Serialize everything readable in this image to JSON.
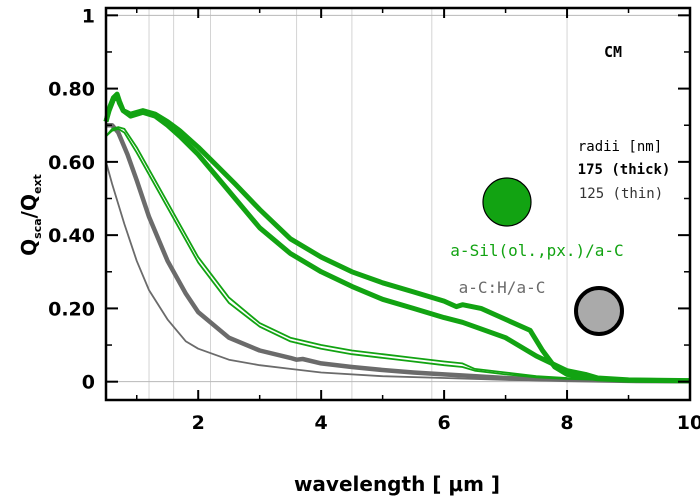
{
  "chart_data": {
    "type": "line",
    "title": "",
    "corner_label": "CM",
    "xlabel": "wavelength [ μm ]",
    "ylabel_main": "Q",
    "ylabel_num_sub": "sca",
    "ylabel_slash": "/",
    "ylabel_den_sub": "ext",
    "xlim": [
      0.5,
      10
    ],
    "ylim": [
      -0.05,
      1.02
    ],
    "xticks": [
      2,
      4,
      6,
      8,
      10
    ],
    "xtick_labels": [
      "2",
      "4",
      "6",
      "8",
      "10"
    ],
    "yticks": [
      0,
      0.2,
      0.4,
      0.6,
      0.8,
      1
    ],
    "ytick_labels": [
      "0",
      "0.20",
      "0.40",
      "0.60",
      "0.80",
      "1"
    ],
    "vertical_gridlines": [
      1.2,
      1.6,
      2.2,
      3.6,
      4.5,
      5.8,
      8.0
    ],
    "horizontal_reference": [
      1.0
    ],
    "legend": {
      "radii_header": "radii [nm]",
      "thick_label": "175 (thick)",
      "thin_label": "125 (thin)"
    },
    "material_labels": [
      {
        "text": "a-Sil(ol.,px.)/a-C",
        "color": "#12a312"
      },
      {
        "text": "a-C:H/a-C",
        "color": "#6b6b6b"
      }
    ],
    "colors": {
      "green": "#12a312",
      "gray": "#6b6b6b",
      "gray_fill": "#aaaaaa"
    },
    "series": [
      {
        "material": "green",
        "style": "thick",
        "points": [
          [
            0.5,
            0.71
          ],
          [
            0.55,
            0.74
          ],
          [
            0.62,
            0.77
          ],
          [
            0.68,
            0.78
          ],
          [
            0.72,
            0.76
          ],
          [
            0.78,
            0.74
          ],
          [
            0.9,
            0.725
          ],
          [
            1.0,
            0.73
          ],
          [
            1.1,
            0.735
          ],
          [
            1.3,
            0.725
          ],
          [
            1.5,
            0.7
          ],
          [
            1.7,
            0.67
          ],
          [
            2.0,
            0.62
          ],
          [
            2.3,
            0.56
          ],
          [
            2.6,
            0.5
          ],
          [
            3.0,
            0.42
          ],
          [
            3.5,
            0.35
          ],
          [
            4.0,
            0.3
          ],
          [
            4.5,
            0.26
          ],
          [
            5.0,
            0.225
          ],
          [
            5.5,
            0.2
          ],
          [
            6.0,
            0.175
          ],
          [
            6.3,
            0.162
          ],
          [
            6.5,
            0.15
          ],
          [
            7.0,
            0.12
          ],
          [
            7.5,
            0.07
          ],
          [
            8.0,
            0.03
          ],
          [
            8.3,
            0.02
          ],
          [
            8.5,
            0.01
          ],
          [
            9.0,
            0.005
          ],
          [
            10,
            0.003
          ]
        ]
      },
      {
        "material": "green",
        "style": "thick",
        "points": [
          [
            0.5,
            0.71
          ],
          [
            0.55,
            0.745
          ],
          [
            0.62,
            0.775
          ],
          [
            0.68,
            0.785
          ],
          [
            0.72,
            0.765
          ],
          [
            0.78,
            0.74
          ],
          [
            0.9,
            0.73
          ],
          [
            1.0,
            0.735
          ],
          [
            1.1,
            0.74
          ],
          [
            1.3,
            0.73
          ],
          [
            1.5,
            0.71
          ],
          [
            1.7,
            0.685
          ],
          [
            2.0,
            0.64
          ],
          [
            2.3,
            0.59
          ],
          [
            2.6,
            0.54
          ],
          [
            3.0,
            0.47
          ],
          [
            3.5,
            0.39
          ],
          [
            4.0,
            0.34
          ],
          [
            4.5,
            0.3
          ],
          [
            5.0,
            0.27
          ],
          [
            5.5,
            0.245
          ],
          [
            6.0,
            0.22
          ],
          [
            6.2,
            0.205
          ],
          [
            6.3,
            0.21
          ],
          [
            6.6,
            0.2
          ],
          [
            7.0,
            0.17
          ],
          [
            7.4,
            0.14
          ],
          [
            7.6,
            0.085
          ],
          [
            7.8,
            0.04
          ],
          [
            8.0,
            0.02
          ],
          [
            8.5,
            0.008
          ],
          [
            9.0,
            0.004
          ],
          [
            10,
            0.002
          ]
        ]
      },
      {
        "material": "green",
        "style": "thin",
        "points": [
          [
            0.5,
            0.67
          ],
          [
            0.6,
            0.69
          ],
          [
            0.7,
            0.695
          ],
          [
            0.8,
            0.69
          ],
          [
            1.0,
            0.64
          ],
          [
            1.2,
            0.58
          ],
          [
            1.5,
            0.49
          ],
          [
            1.8,
            0.4
          ],
          [
            2.0,
            0.34
          ],
          [
            2.5,
            0.23
          ],
          [
            3.0,
            0.16
          ],
          [
            3.5,
            0.12
          ],
          [
            4.0,
            0.1
          ],
          [
            4.5,
            0.085
          ],
          [
            5.0,
            0.075
          ],
          [
            5.5,
            0.065
          ],
          [
            6.0,
            0.055
          ],
          [
            6.3,
            0.05
          ],
          [
            6.5,
            0.035
          ],
          [
            7.0,
            0.025
          ],
          [
            7.5,
            0.015
          ],
          [
            8.0,
            0.01
          ],
          [
            9.0,
            0.004
          ],
          [
            10,
            0.002
          ]
        ]
      },
      {
        "material": "green",
        "style": "thin",
        "points": [
          [
            0.5,
            0.67
          ],
          [
            0.6,
            0.685
          ],
          [
            0.7,
            0.69
          ],
          [
            0.8,
            0.68
          ],
          [
            1.0,
            0.625
          ],
          [
            1.2,
            0.565
          ],
          [
            1.5,
            0.475
          ],
          [
            1.8,
            0.385
          ],
          [
            2.0,
            0.325
          ],
          [
            2.5,
            0.215
          ],
          [
            3.0,
            0.15
          ],
          [
            3.5,
            0.11
          ],
          [
            4.0,
            0.09
          ],
          [
            4.5,
            0.075
          ],
          [
            5.0,
            0.065
          ],
          [
            5.5,
            0.055
          ],
          [
            6.0,
            0.045
          ],
          [
            6.3,
            0.04
          ],
          [
            6.5,
            0.03
          ],
          [
            7.0,
            0.02
          ],
          [
            7.5,
            0.012
          ],
          [
            8.0,
            0.008
          ],
          [
            9.0,
            0.003
          ],
          [
            10,
            0.002
          ]
        ]
      },
      {
        "material": "gray",
        "style": "thick",
        "points": [
          [
            0.5,
            0.7
          ],
          [
            0.6,
            0.7
          ],
          [
            0.7,
            0.68
          ],
          [
            0.85,
            0.62
          ],
          [
            1.0,
            0.55
          ],
          [
            1.2,
            0.45
          ],
          [
            1.5,
            0.33
          ],
          [
            1.8,
            0.24
          ],
          [
            2.0,
            0.19
          ],
          [
            2.5,
            0.12
          ],
          [
            3.0,
            0.085
          ],
          [
            3.5,
            0.065
          ],
          [
            3.6,
            0.06
          ],
          [
            3.7,
            0.062
          ],
          [
            4.0,
            0.05
          ],
          [
            4.5,
            0.04
          ],
          [
            5.0,
            0.032
          ],
          [
            5.5,
            0.025
          ],
          [
            6.0,
            0.02
          ],
          [
            7.0,
            0.01
          ],
          [
            8.0,
            0.005
          ],
          [
            9.0,
            0.002
          ],
          [
            10,
            0.001
          ]
        ]
      },
      {
        "material": "gray",
        "style": "thin",
        "points": [
          [
            0.5,
            0.6
          ],
          [
            0.6,
            0.54
          ],
          [
            0.8,
            0.43
          ],
          [
            1.0,
            0.33
          ],
          [
            1.2,
            0.25
          ],
          [
            1.5,
            0.17
          ],
          [
            1.8,
            0.11
          ],
          [
            2.0,
            0.09
          ],
          [
            2.5,
            0.06
          ],
          [
            3.0,
            0.045
          ],
          [
            3.5,
            0.035
          ],
          [
            4.0,
            0.025
          ],
          [
            5.0,
            0.015
          ],
          [
            6.0,
            0.01
          ],
          [
            7.0,
            0.005
          ],
          [
            8.0,
            0.003
          ],
          [
            10,
            0.001
          ]
        ]
      }
    ]
  }
}
